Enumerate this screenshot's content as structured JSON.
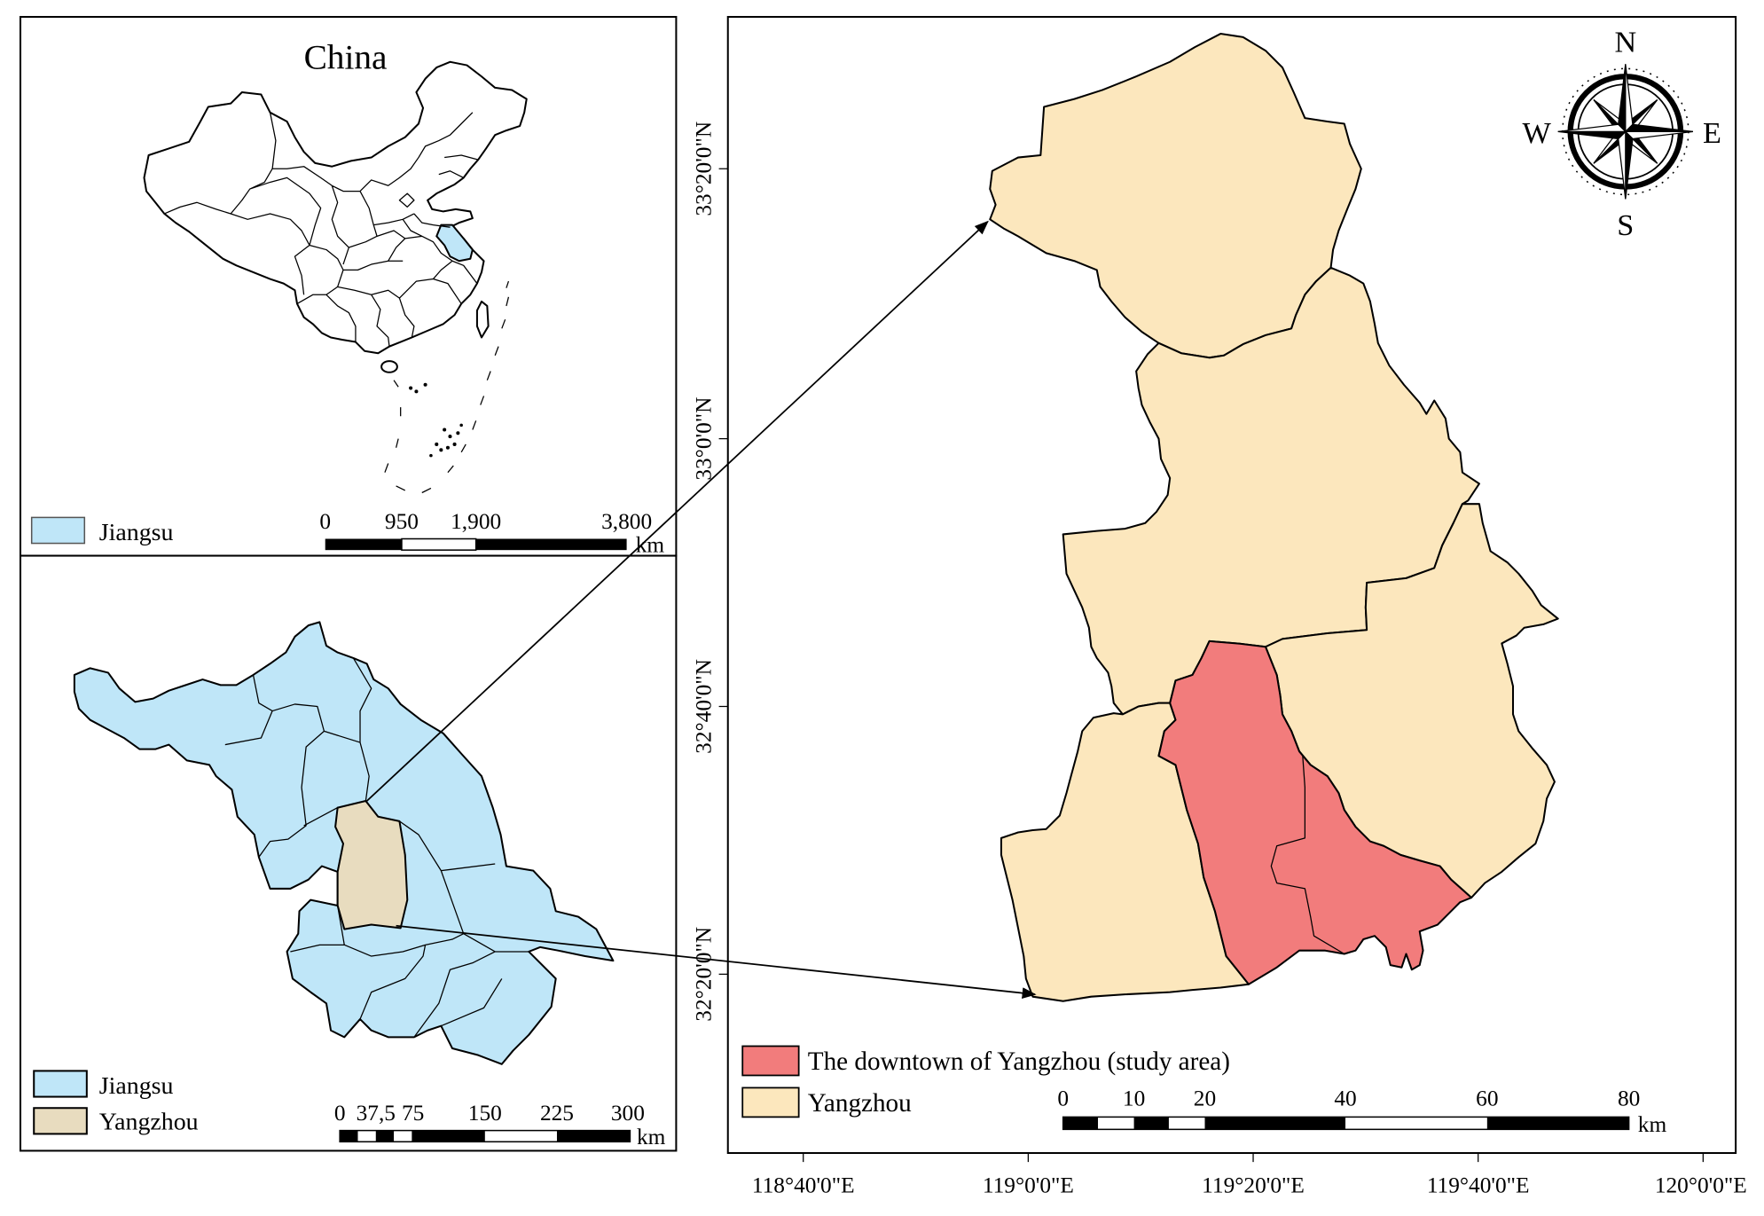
{
  "china_inset": {
    "title": "China",
    "legend": {
      "jiangsu": "Jiangsu"
    },
    "scale_bar": {
      "labels": [
        "0",
        "950",
        "1,900",
        "3,800"
      ],
      "unit": "km"
    }
  },
  "jiangsu_inset": {
    "legend": {
      "jiangsu": "Jiangsu",
      "yangzhou": "Yangzhou"
    },
    "scale_bar": {
      "labels": [
        "0",
        "37,5",
        "75",
        "150",
        "225",
        "300"
      ],
      "unit": "km"
    }
  },
  "yangzhou_map": {
    "legend": {
      "study_area": "The downtown of Yangzhou (study area)",
      "yangzhou": "Yangzhou"
    },
    "scale_bar": {
      "labels": [
        "0",
        "10",
        "20",
        "40",
        "60",
        "80"
      ],
      "unit": "km"
    },
    "compass": {
      "north": "N",
      "east": "E",
      "south": "S",
      "west": "W"
    },
    "latitude_labels": [
      "33°20'0\"N",
      "33°0'0\"N",
      "32°40'0\"N",
      "32°20'0\"N"
    ],
    "longitude_labels": [
      "118°40'0\"E",
      "119°0'0\"E",
      "119°20'0\"E",
      "119°40'0\"E",
      "120°0'0\"E"
    ]
  },
  "colors": {
    "jiangsu": "#bfe6f8",
    "yangzhou_in_jiangsu": "#e8dcbf",
    "study_area": "#f27c7c",
    "yangzhou": "#fce7bd"
  }
}
